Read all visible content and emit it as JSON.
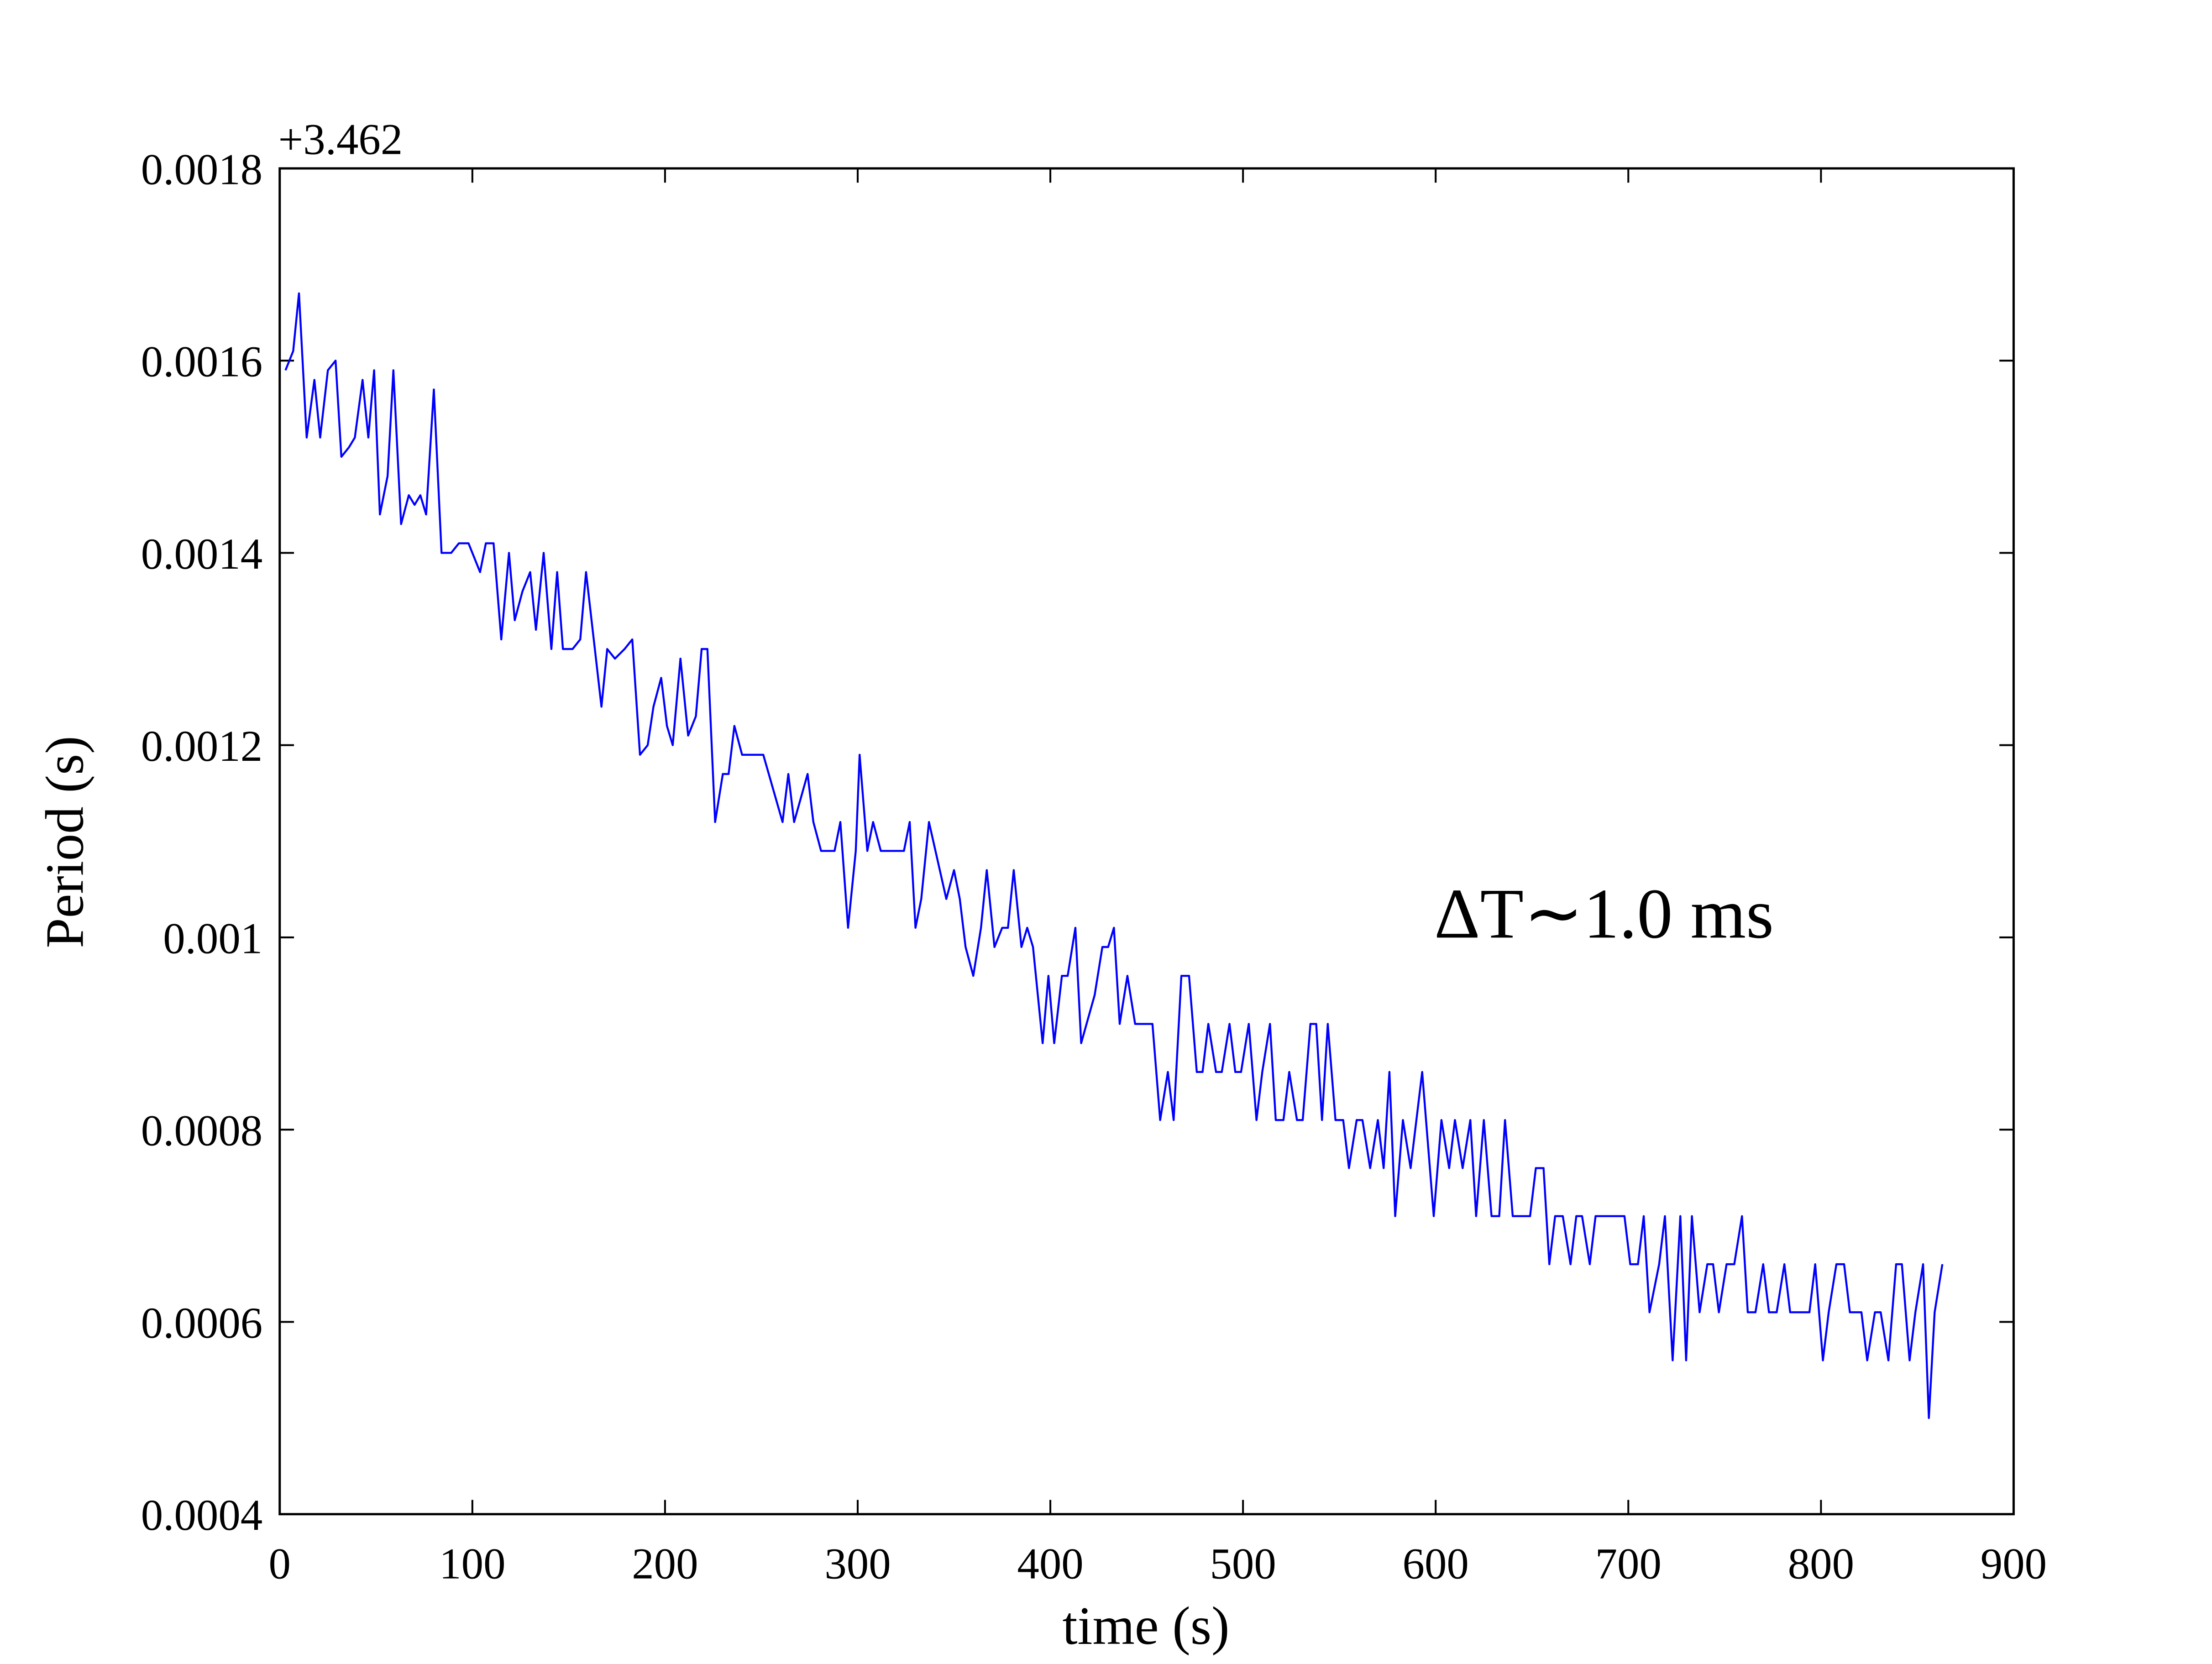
{
  "chart_data": {
    "type": "line",
    "xlabel": "time (s)",
    "ylabel": "Period (s)",
    "y_offset_text": "+3.462",
    "annotation": "ΔT∼1.0 ms",
    "color": "#0000ff",
    "label_color": "#0000ff",
    "xlim": [
      0,
      900
    ],
    "xticks": [
      0,
      100,
      200,
      300,
      400,
      500,
      600,
      700,
      800,
      900
    ],
    "ylim": [
      0.0004,
      0.0018
    ],
    "yticks": [
      0.0004,
      0.0006,
      0.0008,
      0.001,
      0.0012,
      0.0014,
      0.0016,
      0.0018
    ],
    "grid": false,
    "x": [
      3,
      7,
      10,
      14,
      18,
      21,
      25,
      29,
      32,
      36,
      39,
      43,
      46,
      49,
      52,
      56,
      59,
      63,
      67,
      70,
      73,
      76,
      80,
      84,
      89,
      93,
      98,
      104,
      107,
      111,
      115,
      119,
      122,
      126,
      130,
      133,
      137,
      141,
      144,
      147,
      152,
      156,
      159,
      163,
      167,
      170,
      174,
      179,
      183,
      187,
      191,
      194,
      198,
      201,
      204,
      208,
      212,
      216,
      219,
      222,
      226,
      230,
      233,
      236,
      240,
      251,
      261,
      264,
      267,
      274,
      277,
      281,
      288,
      291,
      295,
      299,
      301,
      305,
      308,
      312,
      324,
      327,
      330,
      333,
      337,
      346,
      350,
      353,
      356,
      360,
      364,
      367,
      371,
      375,
      378,
      381,
      385,
      388,
      391,
      396,
      399,
      402,
      406,
      409,
      413,
      416,
      423,
      427,
      430,
      433,
      436,
      440,
      444,
      453,
      457,
      461,
      464,
      468,
      472,
      476,
      479,
      482,
      486,
      489,
      493,
      496,
      499,
      503,
      507,
      510,
      514,
      517,
      521,
      524,
      528,
      531,
      535,
      538,
      541,
      544,
      548,
      552,
      555,
      559,
      562,
      566,
      570,
      573,
      576,
      579,
      583,
      587,
      593,
      599,
      603,
      607,
      610,
      614,
      618,
      621,
      625,
      629,
      633,
      636,
      640,
      649,
      652,
      656,
      659,
      662,
      666,
      670,
      673,
      676,
      680,
      683,
      698,
      701,
      705,
      708,
      711,
      716,
      719,
      723,
      727,
      730,
      733,
      737,
      741,
      744,
      747,
      751,
      755,
      759,
      762,
      766,
      770,
      773,
      777,
      781,
      784,
      794,
      797,
      801,
      804,
      808,
      812,
      815,
      821,
      824,
      828,
      831,
      835,
      839,
      842,
      846,
      849,
      853,
      856,
      859,
      863
    ],
    "values": [
      0.00159,
      0.00161,
      0.00167,
      0.00152,
      0.00158,
      0.00152,
      0.00159,
      0.0016,
      0.0015,
      0.00151,
      0.00152,
      0.00158,
      0.00152,
      0.00159,
      0.00144,
      0.00148,
      0.00159,
      0.00143,
      0.00146,
      0.00145,
      0.00146,
      0.00144,
      0.00157,
      0.0014,
      0.0014,
      0.00141,
      0.00141,
      0.00138,
      0.00141,
      0.00141,
      0.00131,
      0.0014,
      0.00133,
      0.00136,
      0.00138,
      0.00132,
      0.0014,
      0.0013,
      0.00138,
      0.0013,
      0.0013,
      0.00131,
      0.00138,
      0.00131,
      0.00124,
      0.0013,
      0.00129,
      0.0013,
      0.00131,
      0.00119,
      0.0012,
      0.00124,
      0.00127,
      0.00122,
      0.0012,
      0.00129,
      0.00121,
      0.00123,
      0.0013,
      0.0013,
      0.00112,
      0.00117,
      0.00117,
      0.00122,
      0.00119,
      0.00119,
      0.00112,
      0.00117,
      0.00112,
      0.00117,
      0.00112,
      0.00109,
      0.00109,
      0.00112,
      0.00101,
      0.00109,
      0.00119,
      0.00109,
      0.00112,
      0.00109,
      0.00109,
      0.00112,
      0.00101,
      0.00104,
      0.00112,
      0.00104,
      0.00107,
      0.00104,
      0.00099,
      0.00096,
      0.00101,
      0.00107,
      0.00099,
      0.00101,
      0.00101,
      0.00107,
      0.00099,
      0.00101,
      0.00099,
      0.00089,
      0.00096,
      0.00089,
      0.00096,
      0.00096,
      0.00101,
      0.00089,
      0.00094,
      0.00099,
      0.00099,
      0.00101,
      0.00091,
      0.00096,
      0.00091,
      0.00091,
      0.00081,
      0.00086,
      0.00081,
      0.00096,
      0.00096,
      0.00086,
      0.00086,
      0.00091,
      0.00086,
      0.00086,
      0.00091,
      0.00086,
      0.00086,
      0.00091,
      0.00081,
      0.00086,
      0.00091,
      0.00081,
      0.00081,
      0.00086,
      0.00081,
      0.00081,
      0.00091,
      0.00091,
      0.00081,
      0.00091,
      0.00081,
      0.00081,
      0.00076,
      0.00081,
      0.00081,
      0.00076,
      0.00081,
      0.00076,
      0.00086,
      0.00071,
      0.00081,
      0.00076,
      0.00086,
      0.00071,
      0.00081,
      0.00076,
      0.00081,
      0.00076,
      0.00081,
      0.00071,
      0.00081,
      0.00071,
      0.00071,
      0.00081,
      0.00071,
      0.00071,
      0.00076,
      0.00076,
      0.00066,
      0.00071,
      0.00071,
      0.00066,
      0.00071,
      0.00071,
      0.00066,
      0.00071,
      0.00071,
      0.00066,
      0.00066,
      0.00071,
      0.00061,
      0.00066,
      0.00071,
      0.00056,
      0.00071,
      0.00056,
      0.00071,
      0.00061,
      0.00066,
      0.00066,
      0.00061,
      0.00066,
      0.00066,
      0.00071,
      0.00061,
      0.00061,
      0.00066,
      0.00061,
      0.00061,
      0.00066,
      0.00061,
      0.00061,
      0.00066,
      0.00056,
      0.00061,
      0.00066,
      0.00066,
      0.00061,
      0.00061,
      0.00056,
      0.00061,
      0.00061,
      0.00056,
      0.00066,
      0.00066,
      0.00056,
      0.00061,
      0.00066,
      0.0005,
      0.00061,
      0.00066
    ]
  }
}
